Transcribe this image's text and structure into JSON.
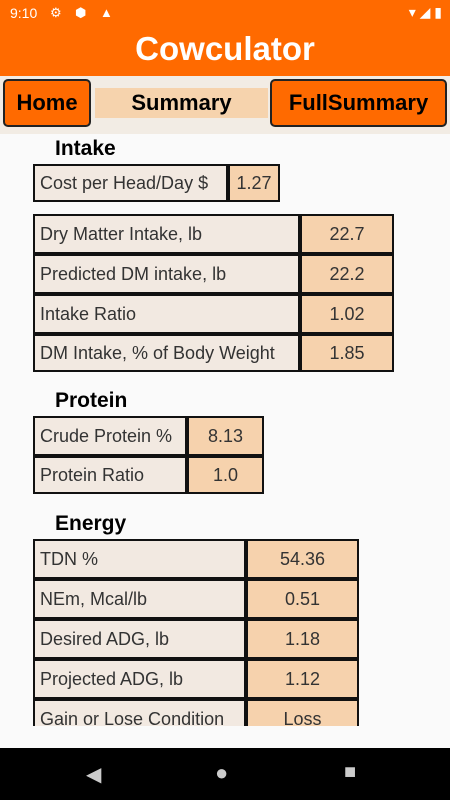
{
  "status": {
    "time": "9:10"
  },
  "app": {
    "title": "Cowculator"
  },
  "nav": {
    "home": "Home",
    "summary": "Summary",
    "full": "FullSummary"
  },
  "intake": {
    "title": "Intake",
    "cost_label": "Cost per Head/Day $",
    "cost_value": "1.27",
    "rows": [
      {
        "label": "Dry Matter Intake, lb",
        "value": "22.7"
      },
      {
        "label": "Predicted DM intake, lb",
        "value": "22.2"
      },
      {
        "label": "Intake Ratio",
        "value": "1.02"
      },
      {
        "label": "DM Intake, % of Body Weight",
        "value": "1.85"
      }
    ]
  },
  "protein": {
    "title": "Protein",
    "rows": [
      {
        "label": "Crude Protein %",
        "value": "8.13"
      },
      {
        "label": "Protein Ratio",
        "value": "1.0"
      }
    ]
  },
  "energy": {
    "title": "Energy",
    "rows": [
      {
        "label": "TDN %",
        "value": "54.36"
      },
      {
        "label": "NEm, Mcal/lb",
        "value": "0.51"
      },
      {
        "label": "Desired ADG, lb",
        "value": "1.18"
      },
      {
        "label": "Projected ADG, lb",
        "value": "1.12"
      },
      {
        "label": "Gain or Lose Condition",
        "value": "Loss"
      }
    ]
  }
}
